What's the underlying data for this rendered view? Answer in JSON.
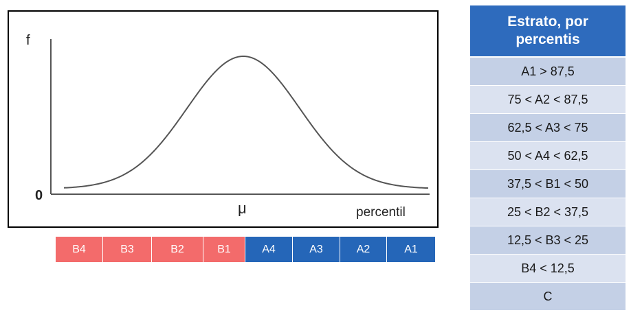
{
  "plot": {
    "y_label": "f",
    "origin_label": "0",
    "mean_label": "μ",
    "x_label": "percentil",
    "curve": "normal-distribution"
  },
  "bands": [
    {
      "label": "B4",
      "color": "#f36b6b"
    },
    {
      "label": "B3",
      "color": "#f36b6b"
    },
    {
      "label": "B2",
      "color": "#f36b6b"
    },
    {
      "label": "B1",
      "color": "#f36b6b"
    },
    {
      "label": "A4",
      "color": "#2566b8"
    },
    {
      "label": "A3",
      "color": "#2566b8"
    },
    {
      "label": "A2",
      "color": "#2566b8"
    },
    {
      "label": "A1",
      "color": "#2566b8"
    }
  ],
  "table": {
    "header": "Estrato, por percentis",
    "rows": [
      "A1 > 87,5",
      "75 < A2 < 87,5",
      "62,5 < A3 < 75",
      "50 < A4 < 62,5",
      "37,5 < B1 < 50",
      "25 < B2 < 37,5",
      "12,5 < B3 < 25",
      "B4 < 12,5",
      "C"
    ]
  }
}
